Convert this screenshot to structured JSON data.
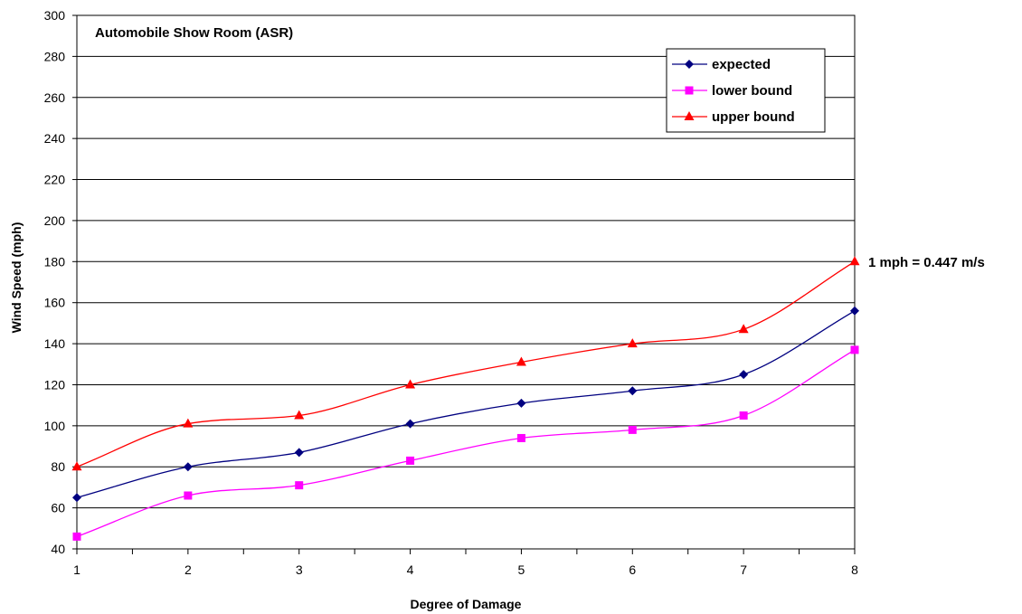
{
  "chart_data": {
    "type": "line",
    "title": "Automobile Show Room (ASR)",
    "xlabel": "Degree of Damage",
    "ylabel": "Wind Speed (mph)",
    "x": [
      1,
      2,
      3,
      4,
      5,
      6,
      7,
      8
    ],
    "xlim": [
      1,
      8
    ],
    "ylim": [
      40,
      300
    ],
    "ytick_step": 20,
    "grid": "horizontal",
    "legend_position": "top-right",
    "annotation": "1 mph = 0.447 m/s",
    "series": [
      {
        "name": "expected",
        "color": "#000080",
        "marker": "diamond",
        "values": [
          65,
          80,
          87,
          101,
          111,
          117,
          125,
          156
        ]
      },
      {
        "name": "lower bound",
        "color": "#ff00ff",
        "marker": "square",
        "values": [
          46,
          66,
          71,
          83,
          94,
          98,
          105,
          137
        ]
      },
      {
        "name": "upper bound",
        "color": "#ff0000",
        "marker": "triangle",
        "values": [
          80,
          101,
          105,
          120,
          131,
          140,
          147,
          180
        ]
      }
    ]
  }
}
